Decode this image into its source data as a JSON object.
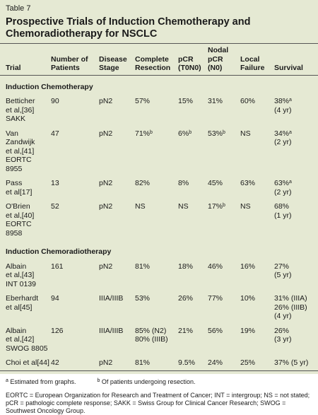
{
  "label": "Table 7",
  "title": [
    "Prospective Trials of Induction Chemotherapy and",
    "Chemoradiotherapy for NSCLC"
  ],
  "table": {
    "headers": [
      [
        "Trial"
      ],
      [
        "Number of",
        "Patients"
      ],
      [
        "Disease",
        "Stage"
      ],
      [
        "Complete",
        "Resection"
      ],
      [
        "pCR",
        "(T0N0)"
      ],
      [
        "Nodal",
        "pCR",
        "(N0)"
      ],
      [
        "Local",
        "Failure"
      ],
      [
        "Survival"
      ]
    ],
    "rows": [
      {
        "section": "Induction Chemotherapy"
      },
      {
        "cells": [
          [
            "Betticher",
            "et al,[36]",
            "SAKK"
          ],
          [
            "90"
          ],
          [
            "pN2"
          ],
          [
            "57%"
          ],
          [
            "15%"
          ],
          [
            "31%"
          ],
          [
            "60%"
          ],
          [
            {
              "text": "38%",
              "sup": "a"
            },
            "(4 yr)"
          ]
        ]
      },
      {
        "cells": [
          [
            "Van Zandwijk",
            "et al,[41]",
            "EORTC 8955"
          ],
          [
            "47"
          ],
          [
            "pN2"
          ],
          [
            {
              "text": "71%",
              "sup": "b"
            }
          ],
          [
            {
              "text": "6%",
              "sup": "b"
            }
          ],
          [
            {
              "text": "53%",
              "sup": "b"
            }
          ],
          [
            "NS"
          ],
          [
            {
              "text": "34%",
              "sup": "a"
            },
            "(2 yr)"
          ]
        ]
      },
      {
        "cells": [
          [
            "Pass",
            "et al[17]"
          ],
          [
            "13"
          ],
          [
            "pN2"
          ],
          [
            "82%"
          ],
          [
            "8%"
          ],
          [
            "45%"
          ],
          [
            "63%"
          ],
          [
            {
              "text": "63%",
              "sup": "a"
            },
            "(2 yr)"
          ]
        ]
      },
      {
        "cells": [
          [
            "O'Brien",
            "et al,[40]",
            "EORTC 8958"
          ],
          [
            "52"
          ],
          [
            "pN2"
          ],
          [
            "NS"
          ],
          [
            "NS"
          ],
          [
            {
              "text": "17%",
              "sup": "b"
            }
          ],
          [
            "NS"
          ],
          [
            "68%",
            "(1 yr)"
          ]
        ]
      },
      {
        "section": "Induction Chemoradiotherapy"
      },
      {
        "cells": [
          [
            "Albain",
            "et al,[43]",
            "INT 0139"
          ],
          [
            "161"
          ],
          [
            "pN2"
          ],
          [
            "81%"
          ],
          [
            "18%"
          ],
          [
            "46%"
          ],
          [
            "16%"
          ],
          [
            "27%",
            "(5 yr)"
          ]
        ]
      },
      {
        "cells": [
          [
            "Eberhardt",
            "et al[45]"
          ],
          [
            "94"
          ],
          [
            "IIIA/IIIB"
          ],
          [
            "53%"
          ],
          [
            "26%"
          ],
          [
            "77%"
          ],
          [
            "10%"
          ],
          [
            "31% (IIIA)",
            "26% (IIIB)",
            "(4 yr)"
          ]
        ]
      },
      {
        "cells": [
          [
            "Albain",
            "et al,[42]",
            "SWOG 8805"
          ],
          [
            "126"
          ],
          [
            "IIIA/IIIB"
          ],
          [
            "85% (N2)",
            "80% (IIIB)"
          ],
          [
            "21%"
          ],
          [
            "56%"
          ],
          [
            "19%"
          ],
          [
            "26%",
            "(3 yr)"
          ]
        ]
      },
      {
        "cells": [
          [
            "Choi et al[44]"
          ],
          [
            "42"
          ],
          [
            "pN2"
          ],
          [
            "81%"
          ],
          [
            "9.5%"
          ],
          [
            "24%"
          ],
          [
            "25%"
          ],
          [
            "37% (5 yr)"
          ]
        ]
      }
    ]
  },
  "footnotes": [
    {
      "mark": "a",
      "text": "Estimated from graphs."
    },
    {
      "mark": "b",
      "text": "Of patients undergoing resection."
    }
  ],
  "abbreviations": "EORTC = European Organization for Research and Treatment of Cancer; INT = intergroup; NS = not stated; pCR = pathologic complete response; SAKK = Swiss Group for Clinical Cancer Research; SWOG = Southwest Oncology Group."
}
